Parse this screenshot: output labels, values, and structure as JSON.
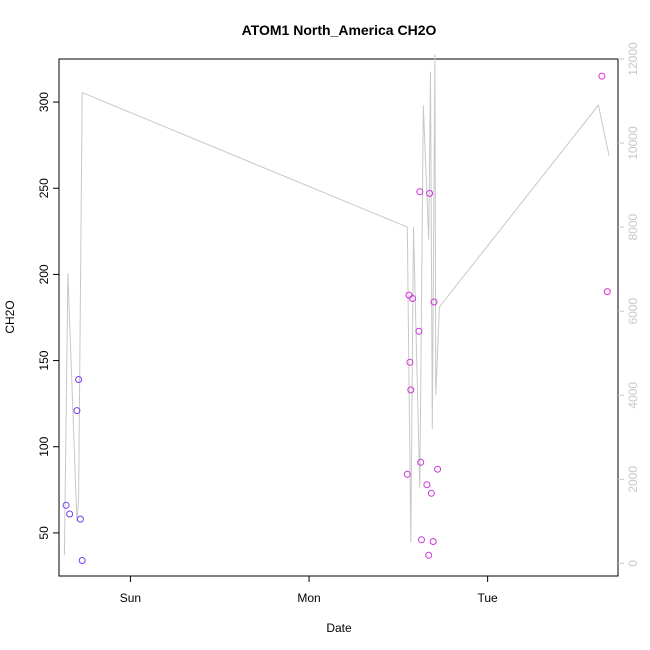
{
  "chart_data": {
    "type": "scatter",
    "title": "ATOM1 North_America CH2O",
    "xlabel": "Date",
    "ylabel": "CH2O",
    "x_axis": {
      "ticks": [
        {
          "day": 1.0,
          "label": "Sun"
        },
        {
          "day": 2.0,
          "label": "Mon"
        },
        {
          "day": 3.0,
          "label": "Tue"
        }
      ],
      "range_days": [
        0.6,
        3.73
      ]
    },
    "y_axis_left": {
      "range": [
        25,
        325
      ],
      "ticks": [
        50,
        100,
        150,
        200,
        250,
        300
      ]
    },
    "y_axis_right": {
      "range": [
        -300,
        12000
      ],
      "ticks": [
        0,
        2000,
        4000,
        6000,
        8000,
        10000,
        12000
      ],
      "color": "#c8c8c8"
    },
    "series": [
      {
        "kind": "points",
        "color": "#7a3cf0",
        "marker": "open-circle",
        "points": [
          {
            "x": 0.64,
            "y": 66
          },
          {
            "x": 0.66,
            "y": 61
          },
          {
            "x": 0.7,
            "y": 121
          },
          {
            "x": 0.71,
            "y": 139
          },
          {
            "x": 0.72,
            "y": 58
          },
          {
            "x": 0.73,
            "y": 34
          }
        ]
      },
      {
        "kind": "points",
        "color": "#cc33dd",
        "marker": "open-circle",
        "points": [
          {
            "x": 2.55,
            "y": 84
          },
          {
            "x": 2.56,
            "y": 188
          },
          {
            "x": 2.565,
            "y": 149
          },
          {
            "x": 2.57,
            "y": 133
          },
          {
            "x": 2.58,
            "y": 186
          },
          {
            "x": 2.615,
            "y": 167
          },
          {
            "x": 2.62,
            "y": 248
          },
          {
            "x": 2.625,
            "y": 91
          },
          {
            "x": 2.63,
            "y": 46
          },
          {
            "x": 2.66,
            "y": 78
          },
          {
            "x": 2.67,
            "y": 37
          },
          {
            "x": 2.675,
            "y": 247
          },
          {
            "x": 2.685,
            "y": 73
          },
          {
            "x": 2.695,
            "y": 45
          },
          {
            "x": 2.7,
            "y": 184
          },
          {
            "x": 2.72,
            "y": 87
          }
        ]
      },
      {
        "kind": "points",
        "color": "#e22bd6",
        "marker": "open-circle",
        "points": [
          {
            "x": 3.64,
            "y": 315
          },
          {
            "x": 3.67,
            "y": 190
          }
        ]
      },
      {
        "kind": "line",
        "axis": "right",
        "color": "#c8c8c8",
        "points": [
          {
            "x": 0.63,
            "y": 200
          },
          {
            "x": 0.65,
            "y": 6900
          },
          {
            "x": 0.7,
            "y": 1000
          },
          {
            "x": 0.71,
            "y": 1500
          },
          {
            "x": 0.73,
            "y": 11200
          },
          {
            "x": 2.55,
            "y": 8000
          },
          {
            "x": 2.57,
            "y": 500
          },
          {
            "x": 2.585,
            "y": 8000
          },
          {
            "x": 2.62,
            "y": 1800
          },
          {
            "x": 2.64,
            "y": 10900
          },
          {
            "x": 2.67,
            "y": 7700
          },
          {
            "x": 2.68,
            "y": 11700
          },
          {
            "x": 2.69,
            "y": 3200
          },
          {
            "x": 2.705,
            "y": 12100
          },
          {
            "x": 2.71,
            "y": 4000
          },
          {
            "x": 2.73,
            "y": 6100
          },
          {
            "x": 3.62,
            "y": 10900
          },
          {
            "x": 3.68,
            "y": 9700
          }
        ]
      }
    ],
    "grid": false,
    "legend": "none"
  }
}
